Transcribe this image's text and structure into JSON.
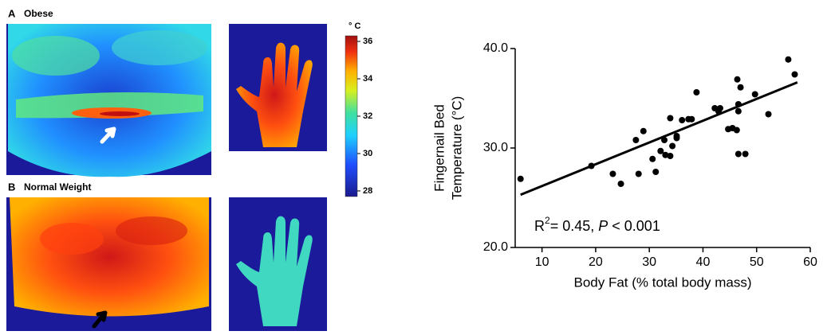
{
  "panels": {
    "a_letter": "A",
    "a_label": "Obese",
    "b_letter": "B",
    "b_label": "Normal Weight"
  },
  "colorbar": {
    "unit": "° C",
    "lim": [
      27.7,
      36.3
    ],
    "ticks": [
      28,
      30,
      32,
      34,
      36
    ]
  },
  "chart_data": {
    "type": "scatter",
    "ylabel": [
      "Fingernail Bed",
      "Temperature (°C)"
    ],
    "xlabel": "Body Fat (% total body mass)",
    "annotation": [
      "R",
      "2",
      "= 0.45, ",
      "P",
      " < 0.001"
    ],
    "xlim": [
      5,
      60
    ],
    "xticks": [
      10,
      20,
      30,
      40,
      50,
      60
    ],
    "ylim": [
      20,
      40
    ],
    "yticks": [
      {
        "value": 20,
        "label": "20.0"
      },
      {
        "value": 30,
        "label": "30.0"
      },
      {
        "value": 40,
        "label": "40.0"
      }
    ],
    "color": "#000000",
    "x": [
      6.0,
      19.2,
      23.2,
      24.7,
      27.5,
      28.9,
      28.0,
      30.6,
      31.2,
      32.1,
      32.8,
      33.0,
      33.9,
      33.9,
      34.3,
      35.1,
      35.1,
      36.1,
      37.3,
      37.9,
      38.8,
      42.2,
      42.9,
      43.2,
      44.7,
      45.5,
      46.3,
      46.4,
      46.6,
      46.6,
      46.6,
      47.0,
      47.9,
      49.7,
      52.2,
      55.9,
      57.1
    ],
    "y": [
      26.9,
      28.2,
      27.4,
      26.4,
      30.8,
      31.7,
      27.4,
      28.9,
      27.6,
      29.7,
      30.8,
      29.3,
      29.2,
      33.0,
      30.2,
      31.0,
      31.2,
      32.8,
      32.9,
      32.9,
      35.6,
      34.0,
      33.7,
      34.0,
      31.9,
      32.0,
      31.8,
      36.9,
      34.4,
      33.7,
      29.4,
      36.1,
      29.4,
      35.4,
      33.4,
      38.9,
      37.4
    ],
    "trendline": {
      "x": [
        6.0,
        57.6
      ],
      "y": [
        25.3,
        36.6
      ]
    }
  }
}
